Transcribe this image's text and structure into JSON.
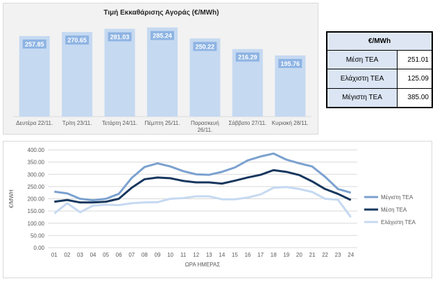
{
  "bar_chart": {
    "title": "Τιμή Εκκαθάρισης Αγοράς (€/MWh)"
  },
  "stats_table": {
    "header": "€/MWh",
    "rows": [
      {
        "label": "Μέση ΤΕΑ",
        "value": "251.01"
      },
      {
        "label": "Ελάχιστη ΤΕΑ",
        "value": "125.09"
      },
      {
        "label": "Μέγιστη ΤΕΑ",
        "value": "385.00"
      }
    ]
  },
  "chart_data": [
    {
      "type": "bar",
      "title": "Τιμή Εκκαθάρισης Αγοράς (€/MWh)",
      "categories": [
        [
          "Δευτέρα 22/11."
        ],
        [
          "Τρίτη 23/11."
        ],
        [
          "Τετάρτη 24/11."
        ],
        [
          "Πέμπτη 25/11."
        ],
        [
          "Παρασκευή",
          "26/11."
        ],
        [
          "Σάββατο 27/11."
        ],
        [
          "Κυριακή 28/11."
        ]
      ],
      "values": [
        257.85,
        270.65,
        281.03,
        285.24,
        250.22,
        216.29,
        195.76
      ],
      "value_labels": [
        "257.85",
        "270.65",
        "281.03",
        "285.24",
        "250.22",
        "216.29",
        "195.76"
      ],
      "ylim": [
        0,
        300
      ],
      "colors": {
        "bar": "#c5d9f1",
        "label_bg": "#8eb4e3",
        "label_text": "#ffffff"
      }
    },
    {
      "type": "line",
      "x": [
        "01",
        "02",
        "03",
        "04",
        "05",
        "06",
        "07",
        "08",
        "09",
        "10",
        "11",
        "12",
        "13",
        "14",
        "15",
        "16",
        "17",
        "18",
        "19",
        "20",
        "21",
        "22",
        "23",
        "24"
      ],
      "xlabel": "ΩΡΑ ΗΜΕΡΑΣ",
      "ylabel": "€/MWH",
      "ylim": [
        0,
        400
      ],
      "yticks": [
        "0.00",
        "50.00",
        "100.00",
        "150.00",
        "200.00",
        "250.00",
        "300.00",
        "350.00",
        "400.00"
      ],
      "grid": true,
      "legend": "right",
      "series": [
        {
          "name": "Μέγιστη ΤΕΑ",
          "color": "#7ba1cf",
          "values": [
            229,
            222,
            200,
            194,
            200,
            220,
            285,
            330,
            345,
            332,
            313,
            300,
            298,
            310,
            328,
            357,
            373,
            385,
            360,
            345,
            332,
            290,
            240,
            225
          ]
        },
        {
          "name": "Μέση ΤΕΑ",
          "color": "#17375e",
          "values": [
            188,
            195,
            185,
            185,
            188,
            200,
            245,
            280,
            287,
            284,
            273,
            267,
            267,
            262,
            274,
            287,
            298,
            317,
            310,
            297,
            271,
            240,
            220,
            195
          ]
        },
        {
          "name": "Ελάχιστη ΤΕΑ",
          "color": "#c6d9f1",
          "values": [
            140,
            182,
            145,
            172,
            176,
            174,
            182,
            185,
            186,
            200,
            203,
            210,
            210,
            198,
            198,
            205,
            218,
            245,
            248,
            240,
            228,
            200,
            196,
            125
          ]
        }
      ]
    }
  ]
}
